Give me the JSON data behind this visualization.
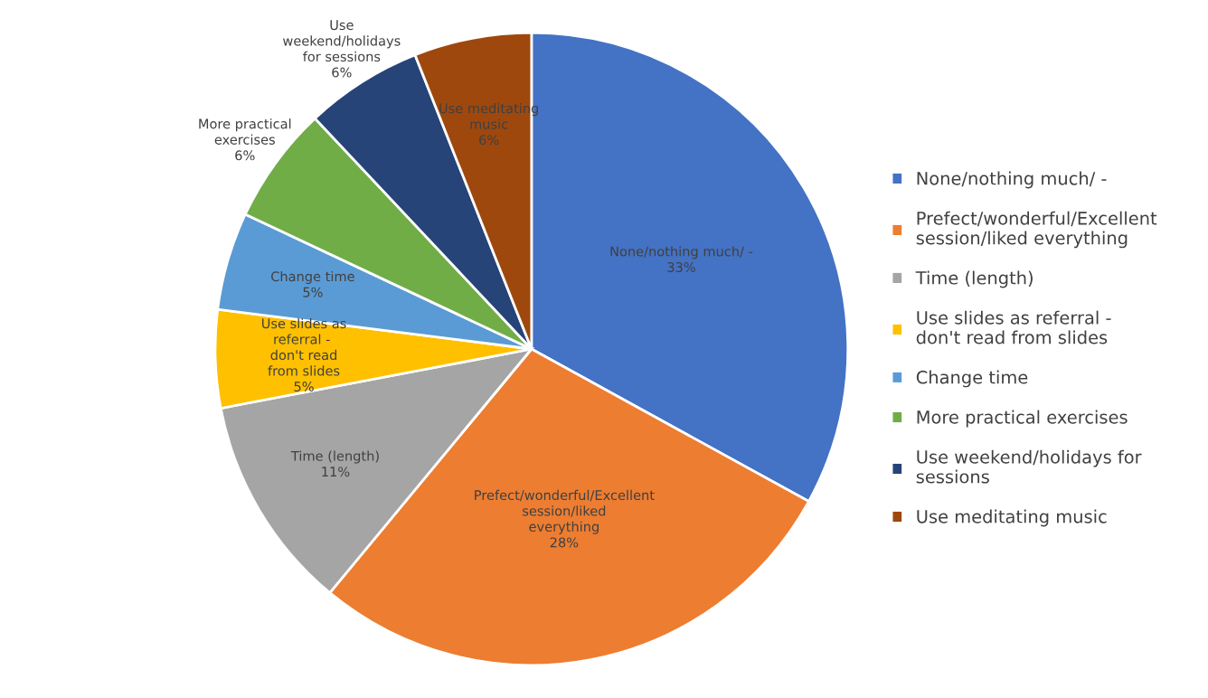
{
  "chart_data": {
    "type": "pie",
    "categories": [
      "None/nothing much/ -",
      "Prefect/wonderful/Excellent session/liked everything",
      "Time (length)",
      "Use slides as referral -  don't read from slides",
      "Change time",
      "More practical exercises",
      "Use weekend/holidays for sessions",
      "Use meditating music"
    ],
    "values": [
      33,
      28,
      11,
      5,
      5,
      6,
      6,
      6
    ],
    "colors": [
      "#4472c4",
      "#ed7d31",
      "#a5a5a5",
      "#ffc000",
      "#5b9bd5",
      "#70ad47",
      "#264478",
      "#9e480e"
    ],
    "value_labels": [
      "33%",
      "28%",
      "11%",
      "5%",
      "5%",
      "6%",
      "6%",
      "6%"
    ],
    "legend": "right"
  }
}
